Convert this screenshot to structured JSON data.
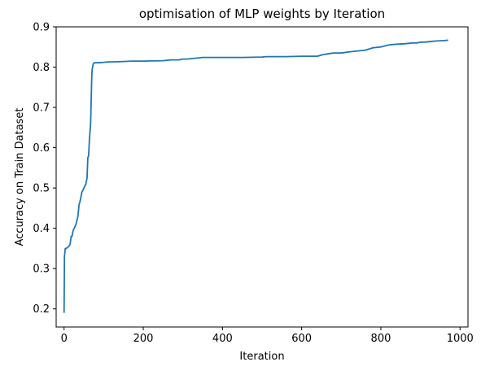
{
  "chart_data": {
    "type": "line",
    "title": "optimisation of MLP weights by Iteration",
    "xlabel": "Iteration",
    "ylabel": "Accuracy on Train Dataset",
    "xlim": [
      -20,
      1020
    ],
    "ylim": [
      0.155,
      0.9
    ],
    "x_ticks": [
      0,
      200,
      400,
      600,
      800,
      1000
    ],
    "x_tick_labels": [
      "0",
      "200",
      "400",
      "600",
      "800",
      "1000"
    ],
    "y_ticks": [
      0.2,
      0.3,
      0.4,
      0.5,
      0.6,
      0.7,
      0.8,
      0.9
    ],
    "y_tick_labels": [
      "0.2",
      "0.3",
      "0.4",
      "0.5",
      "0.6",
      "0.7",
      "0.8",
      "0.9"
    ],
    "grid": false,
    "series": [
      {
        "color": "#1f77b4",
        "x": [
          0,
          1,
          2,
          3,
          6,
          8,
          12,
          15,
          18,
          20,
          23,
          28,
          30,
          35,
          38,
          40,
          45,
          48,
          50,
          55,
          58,
          60,
          62,
          64,
          67,
          68,
          70,
          71,
          72,
          73,
          74,
          75,
          76,
          77,
          78,
          80,
          85,
          90,
          100,
          110,
          120,
          150,
          170,
          200,
          250,
          270,
          280,
          290,
          300,
          310,
          320,
          330,
          340,
          350,
          400,
          450,
          500,
          510,
          560,
          600,
          640,
          650,
          660,
          680,
          700,
          720,
          740,
          760,
          780,
          800,
          820,
          840,
          860,
          870,
          880,
          890,
          900,
          910,
          920,
          930,
          940,
          960,
          970
        ],
        "y": [
          0.19,
          0.33,
          0.34,
          0.35,
          0.35,
          0.352,
          0.355,
          0.36,
          0.38,
          0.38,
          0.395,
          0.405,
          0.41,
          0.43,
          0.46,
          0.465,
          0.49,
          0.495,
          0.5,
          0.51,
          0.525,
          0.575,
          0.58,
          0.62,
          0.66,
          0.7,
          0.78,
          0.795,
          0.8,
          0.805,
          0.808,
          0.81,
          0.81,
          0.811,
          0.811,
          0.811,
          0.811,
          0.811,
          0.812,
          0.813,
          0.813,
          0.814,
          0.815,
          0.815,
          0.816,
          0.818,
          0.818,
          0.818,
          0.82,
          0.82,
          0.821,
          0.822,
          0.823,
          0.824,
          0.824,
          0.824,
          0.825,
          0.826,
          0.826,
          0.827,
          0.827,
          0.83,
          0.832,
          0.835,
          0.835,
          0.838,
          0.84,
          0.842,
          0.848,
          0.85,
          0.855,
          0.857,
          0.858,
          0.859,
          0.86,
          0.86,
          0.862,
          0.862,
          0.863,
          0.864,
          0.865,
          0.866,
          0.867
        ]
      }
    ]
  }
}
